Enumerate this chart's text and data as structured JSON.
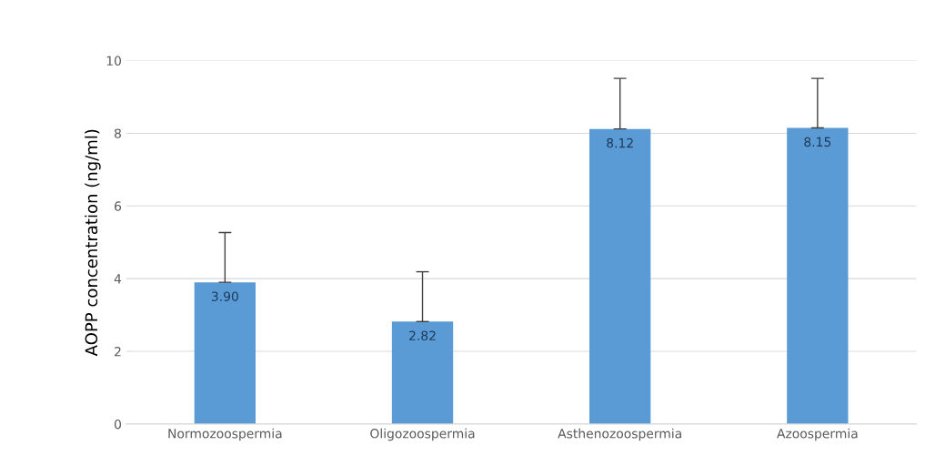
{
  "chart_data": {
    "type": "bar",
    "ylabel": "AOPP concentration (ng/ml)",
    "categories": [
      "Normozoospermia",
      "Oligozoospermia",
      "Asthenozoospermia",
      "Azoospermia"
    ],
    "values": [
      3.9,
      2.82,
      8.12,
      8.15
    ],
    "errors": [
      [
        3.9,
        5.27
      ],
      [
        2.82,
        4.19
      ],
      [
        8.12,
        9.51
      ],
      [
        8.15,
        9.51
      ]
    ],
    "color": "#5b9bd5",
    "value_labels": [
      "3.90",
      "2.82",
      "8.12",
      "8.15"
    ],
    "ylim": [
      0,
      10
    ],
    "yticks": [
      0,
      2,
      4,
      6,
      8,
      10
    ],
    "grid": "y"
  }
}
